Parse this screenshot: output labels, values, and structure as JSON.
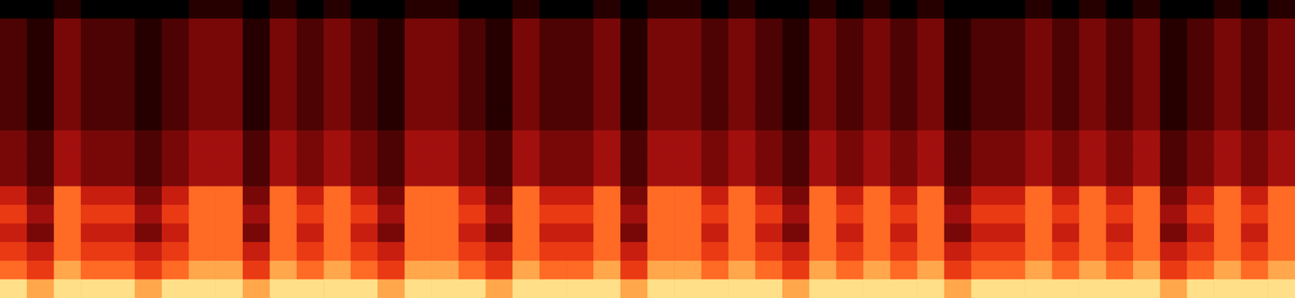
{
  "chart_data": {
    "type": "heatmap",
    "tick_labels": false,
    "grid": false,
    "color_range": [
      0,
      10
    ],
    "cells": [
      [
        0,
        0,
        1,
        0,
        0,
        0,
        0,
        1,
        1,
        0,
        1,
        0,
        1,
        0,
        0,
        1,
        1,
        0,
        0,
        1,
        0,
        0,
        1,
        0,
        1,
        1,
        0,
        1,
        0,
        0,
        1,
        0,
        1,
        0,
        1,
        0,
        0,
        0,
        1,
        0,
        1,
        0,
        1,
        0,
        0,
        1,
        0,
        1
      ],
      [
        2,
        1,
        3,
        2,
        2,
        1,
        2,
        3,
        3,
        1,
        3,
        2,
        3,
        2,
        1,
        3,
        3,
        2,
        1,
        3,
        2,
        2,
        3,
        1,
        3,
        3,
        2,
        3,
        2,
        1,
        3,
        2,
        3,
        2,
        3,
        1,
        2,
        2,
        3,
        2,
        3,
        2,
        3,
        1,
        2,
        3,
        2,
        3
      ],
      [
        2,
        1,
        3,
        2,
        2,
        1,
        2,
        3,
        3,
        1,
        3,
        2,
        3,
        2,
        1,
        3,
        3,
        2,
        1,
        3,
        2,
        2,
        3,
        1,
        3,
        3,
        2,
        3,
        2,
        1,
        3,
        2,
        3,
        2,
        3,
        1,
        2,
        2,
        3,
        2,
        3,
        2,
        3,
        1,
        2,
        3,
        2,
        3
      ],
      [
        2,
        1,
        3,
        2,
        2,
        1,
        2,
        3,
        3,
        1,
        3,
        2,
        3,
        2,
        1,
        3,
        3,
        2,
        1,
        3,
        2,
        2,
        3,
        1,
        3,
        3,
        2,
        3,
        2,
        1,
        3,
        2,
        3,
        2,
        3,
        1,
        2,
        2,
        3,
        2,
        3,
        2,
        3,
        1,
        2,
        3,
        2,
        3
      ],
      [
        2,
        1,
        3,
        2,
        2,
        1,
        2,
        3,
        3,
        1,
        3,
        2,
        3,
        2,
        1,
        3,
        3,
        2,
        1,
        3,
        2,
        2,
        3,
        1,
        3,
        3,
        2,
        3,
        2,
        1,
        3,
        2,
        3,
        2,
        3,
        1,
        2,
        2,
        3,
        2,
        3,
        2,
        3,
        1,
        2,
        3,
        2,
        3
      ],
      [
        2,
        1,
        3,
        2,
        2,
        1,
        2,
        3,
        3,
        1,
        3,
        2,
        3,
        2,
        1,
        3,
        3,
        2,
        1,
        3,
        2,
        2,
        3,
        1,
        3,
        3,
        2,
        3,
        2,
        1,
        3,
        2,
        3,
        2,
        3,
        1,
        2,
        2,
        3,
        2,
        3,
        2,
        3,
        1,
        2,
        3,
        2,
        3
      ],
      [
        2,
        1,
        3,
        2,
        2,
        1,
        2,
        3,
        3,
        1,
        3,
        2,
        3,
        2,
        1,
        3,
        3,
        2,
        1,
        3,
        2,
        2,
        3,
        1,
        3,
        3,
        2,
        3,
        2,
        1,
        3,
        2,
        3,
        2,
        3,
        1,
        2,
        2,
        3,
        2,
        3,
        2,
        3,
        1,
        2,
        3,
        2,
        3
      ],
      [
        3,
        2,
        4,
        3,
        3,
        2,
        3,
        4,
        4,
        2,
        4,
        3,
        4,
        3,
        2,
        4,
        4,
        3,
        2,
        4,
        3,
        3,
        4,
        2,
        4,
        4,
        3,
        4,
        3,
        2,
        4,
        3,
        4,
        3,
        4,
        2,
        3,
        3,
        4,
        3,
        4,
        3,
        4,
        2,
        3,
        4,
        3,
        4
      ],
      [
        3,
        2,
        4,
        3,
        3,
        2,
        3,
        4,
        4,
        2,
        4,
        3,
        4,
        3,
        2,
        4,
        4,
        3,
        2,
        4,
        3,
        3,
        4,
        2,
        4,
        4,
        3,
        4,
        3,
        2,
        4,
        3,
        4,
        3,
        4,
        2,
        3,
        3,
        4,
        3,
        4,
        3,
        4,
        2,
        3,
        4,
        3,
        4
      ],
      [
        3,
        2,
        4,
        3,
        3,
        2,
        3,
        4,
        4,
        2,
        4,
        3,
        4,
        3,
        2,
        4,
        4,
        3,
        2,
        4,
        3,
        3,
        4,
        2,
        4,
        4,
        3,
        4,
        3,
        2,
        4,
        3,
        4,
        3,
        4,
        2,
        3,
        3,
        4,
        3,
        4,
        3,
        4,
        2,
        3,
        4,
        3,
        4
      ],
      [
        5,
        3,
        7,
        5,
        5,
        3,
        5,
        7,
        7,
        3,
        7,
        5,
        7,
        5,
        3,
        7,
        7,
        5,
        3,
        7,
        5,
        5,
        7,
        3,
        7,
        7,
        5,
        7,
        5,
        3,
        7,
        5,
        7,
        5,
        7,
        3,
        5,
        5,
        7,
        5,
        7,
        5,
        7,
        3,
        5,
        7,
        5,
        7
      ],
      [
        6,
        4,
        7,
        6,
        6,
        4,
        6,
        7,
        7,
        4,
        7,
        6,
        7,
        6,
        4,
        7,
        7,
        6,
        4,
        7,
        6,
        6,
        7,
        4,
        7,
        7,
        6,
        7,
        6,
        4,
        7,
        6,
        7,
        6,
        7,
        4,
        6,
        6,
        7,
        6,
        7,
        6,
        7,
        4,
        6,
        7,
        6,
        7
      ],
      [
        5,
        3,
        7,
        5,
        5,
        3,
        5,
        7,
        7,
        3,
        7,
        5,
        7,
        5,
        3,
        7,
        7,
        5,
        3,
        7,
        5,
        5,
        7,
        3,
        7,
        7,
        5,
        7,
        5,
        3,
        7,
        5,
        7,
        5,
        7,
        3,
        5,
        5,
        7,
        5,
        7,
        5,
        7,
        3,
        5,
        7,
        5,
        7
      ],
      [
        6,
        5,
        7,
        6,
        6,
        5,
        6,
        7,
        7,
        5,
        7,
        6,
        7,
        6,
        5,
        7,
        7,
        6,
        5,
        7,
        6,
        6,
        7,
        5,
        7,
        7,
        6,
        7,
        6,
        5,
        7,
        6,
        7,
        6,
        7,
        5,
        6,
        6,
        7,
        6,
        7,
        6,
        7,
        5,
        6,
        7,
        6,
        7
      ],
      [
        7,
        6,
        8,
        7,
        7,
        6,
        7,
        8,
        8,
        6,
        8,
        7,
        8,
        7,
        6,
        8,
        8,
        7,
        6,
        8,
        7,
        7,
        8,
        6,
        8,
        8,
        7,
        8,
        7,
        6,
        8,
        7,
        8,
        7,
        8,
        6,
        7,
        7,
        8,
        7,
        8,
        7,
        8,
        6,
        7,
        8,
        7,
        8
      ],
      [
        9,
        8,
        9,
        9,
        9,
        8,
        9,
        9,
        9,
        8,
        9,
        9,
        9,
        9,
        8,
        9,
        9,
        9,
        8,
        9,
        9,
        9,
        9,
        8,
        9,
        9,
        9,
        9,
        9,
        8,
        9,
        9,
        9,
        9,
        9,
        8,
        9,
        9,
        9,
        9,
        9,
        9,
        9,
        8,
        9,
        9,
        9,
        9
      ]
    ]
  }
}
